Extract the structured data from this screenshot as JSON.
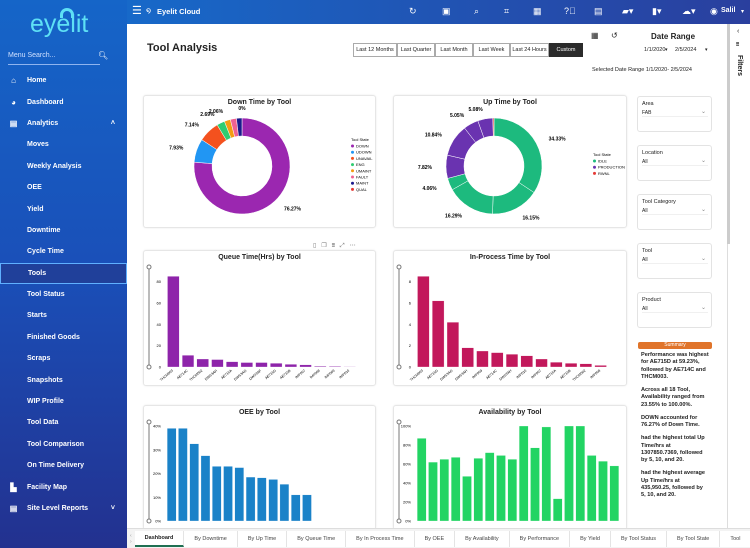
{
  "app": {
    "title": "Eyelit Cloud",
    "logo_text": "eyelit",
    "user": "Salil"
  },
  "sidebar": {
    "search_placeholder": "Menu Search...",
    "items": [
      {
        "label": "Home",
        "icon": "home-icon",
        "glyph": "⌂",
        "level": 0
      },
      {
        "label": "Dashboard",
        "icon": "dashboard-icon",
        "glyph": "◕",
        "level": 0
      },
      {
        "label": "Analytics",
        "icon": "analytics-icon",
        "glyph": "▤",
        "level": 0,
        "chevron": "˄"
      },
      {
        "label": "Moves",
        "level": 1
      },
      {
        "label": "Weekly Analysis",
        "level": 1
      },
      {
        "label": "OEE",
        "level": 1
      },
      {
        "label": "Yield",
        "level": 1
      },
      {
        "label": "Downtime",
        "level": 1
      },
      {
        "label": "Cycle Time",
        "level": 1
      },
      {
        "label": "Tools",
        "level": 1,
        "active": true
      },
      {
        "label": "Tool Status",
        "level": 1
      },
      {
        "label": "Starts",
        "level": 1
      },
      {
        "label": "Finished Goods",
        "level": 1
      },
      {
        "label": "Scraps",
        "level": 1
      },
      {
        "label": "Snapshots",
        "level": 1
      },
      {
        "label": "WIP Profile",
        "level": 1
      },
      {
        "label": "Tool Data",
        "level": 1
      },
      {
        "label": "Tool Comparison",
        "level": 1
      },
      {
        "label": "On Time Delivery",
        "level": 1
      },
      {
        "label": "Facility Map",
        "icon": "factory-icon",
        "glyph": "▙",
        "level": 0
      },
      {
        "label": "Site Level Reports",
        "icon": "reports-icon",
        "glyph": "▤",
        "level": 0,
        "chevron": "˅"
      }
    ]
  },
  "header": {
    "page_title": "Tool Analysis",
    "range_buttons": [
      "Last 12 Months",
      "Last Quarter",
      "Last Month",
      "Last Week",
      "Last 24 Hours",
      "Custom"
    ],
    "selected_range": "Custom",
    "date_range_title": "Date Range",
    "date_from": "1/1/2020",
    "date_to": "2/5/2024",
    "selected_date_text": "Selected Date Range 1/1/2020- 2/5/2024"
  },
  "filters": {
    "title": "Filters",
    "items": [
      {
        "label": "Area",
        "value": "FAB"
      },
      {
        "label": "Location",
        "value": "All"
      },
      {
        "label": "Tool Category",
        "value": "All"
      },
      {
        "label": "Tool",
        "value": "All"
      },
      {
        "label": "Product",
        "value": "All"
      }
    ]
  },
  "summary": {
    "title": "Summary",
    "paragraphs": [
      "Performance was highest for AE715D at 59.23%, followed by AE714C and THCM003.",
      "Across all 18 Tool, Availability ranged from 23.55% to 100.00%.",
      "DOWN accounted for 76.27% of  Down Time.",
      " had the highest total Up Time/hrs at 1307850.7369, followed by 5, 10, and 20.",
      " had the highest average Up Time/hrs at 435,950.25, followed by 5, 10, and 20."
    ]
  },
  "tabs": [
    "Dashboard",
    "By Downtime",
    "By Up Time",
    "By Queue Time",
    "By In Process Time",
    "By OEE",
    "By Availability",
    "By Performance",
    "By Yield",
    "By Tool Status",
    "By Tool State",
    "Tool"
  ],
  "chart_data": [
    {
      "id": "down",
      "type": "pie",
      "title": "Down Time by Tool",
      "legend_title": "Tool State",
      "legend_placement": "right",
      "slices": [
        {
          "name": "DOWN",
          "value": 76.27,
          "color": "#9b27b0",
          "label": "76.27%"
        },
        {
          "name": "UDOWN",
          "value": 7.93,
          "color": "#2196f3",
          "label": "7.93%"
        },
        {
          "name": "UNAVAIL",
          "value": 7.14,
          "color": "#f4511e",
          "label": "7.14%"
        },
        {
          "name": "ENG",
          "value": 2.69,
          "color": "#2ecc71",
          "label": "2.69%"
        },
        {
          "name": "UMAINT",
          "value": 2.06,
          "color": "#f39c12",
          "label": "2.06%"
        },
        {
          "name": "FAULT",
          "value": 2.06,
          "color": "#f06292",
          "label": ""
        },
        {
          "name": "MAINT",
          "value": 1.85,
          "color": "#1a1a8c",
          "label": ""
        },
        {
          "name": "QUAL",
          "value": 0,
          "color": "#e53935",
          "label": "0%"
        }
      ]
    },
    {
      "id": "up",
      "type": "pie",
      "title": "Up Time by Tool",
      "legend_title": "Tool State",
      "legend_placement": "right",
      "legend": [
        {
          "name": "IDLE",
          "color": "#1dba7e"
        },
        {
          "name": "PRODUCTION",
          "color": "#6a33b0"
        },
        {
          "name": "RWNL",
          "color": "#e53935"
        }
      ],
      "slices": [
        {
          "name": "IDLE",
          "value": 34.33,
          "color": "#1dba7e",
          "label": "34.33%"
        },
        {
          "name": "IDLE",
          "value": 16.15,
          "color": "#1dba7e",
          "label": "16.15%"
        },
        {
          "name": "IDLE",
          "value": 16.29,
          "color": "#1dba7e",
          "label": "16.29%"
        },
        {
          "name": "IDLE",
          "value": 4.06,
          "color": "#1dba7e",
          "label": "4.06%"
        },
        {
          "name": "PRODUCTION",
          "value": 7.82,
          "color": "#6a33b0",
          "label": "7.82%"
        },
        {
          "name": "PRODUCTION",
          "value": 10.84,
          "color": "#6a33b0",
          "label": "10.84%"
        },
        {
          "name": "PRODUCTION",
          "value": 5.05,
          "color": "#6a33b0",
          "label": "5.05%"
        },
        {
          "name": "PRODUCTION",
          "value": 5.08,
          "color": "#6a33b0",
          "label": "5.08%"
        },
        {
          "name": "RWNL",
          "value": 0.38,
          "color": "#e53935",
          "label": ""
        }
      ]
    },
    {
      "id": "queue",
      "type": "bar",
      "title": "Queue Time(Hrs) by Tool",
      "color": "#8e24aa",
      "ylim": [
        0,
        90
      ],
      "yticks": [
        0,
        20,
        40,
        60,
        80
      ],
      "tick_suffix": "",
      "categories": [
        "THCM003",
        "AE714C",
        "THCM002",
        "DWS3AH",
        "AE715A",
        "DWS3AG",
        "DWS3AF",
        "AE715D",
        "AE715B",
        "IMP007",
        "IMP008",
        "IMP009",
        "IMP010"
      ],
      "values": [
        85,
        11,
        7.5,
        7,
        5,
        4.2,
        4.2,
        3.5,
        2.5,
        2,
        0.8,
        0.6,
        0.4
      ]
    },
    {
      "id": "inproc",
      "type": "bar",
      "title": "In-Process Time by Tool",
      "color": "#c2185b",
      "ylim": [
        0,
        9
      ],
      "yticks": [
        0,
        2,
        4,
        6,
        8
      ],
      "tick_suffix": "",
      "categories": [
        "THCM003",
        "AE715D",
        "DWS3AG",
        "DWS3AH",
        "IMP009",
        "AE714C",
        "DWS3AH",
        "IMP010",
        "IMP007",
        "AE715A",
        "AE715B",
        "THCM002",
        "IMP008"
      ],
      "values": [
        8.5,
        6.2,
        4.2,
        1.8,
        1.5,
        1.35,
        1.2,
        1.05,
        0.75,
        0.45,
        0.35,
        0.3,
        0.15
      ]
    },
    {
      "id": "oee",
      "type": "bar",
      "title": "OEE by Tool",
      "color": "#1a82c8",
      "ylim": [
        0,
        40
      ],
      "yticks": [
        0,
        10,
        20,
        30,
        40
      ],
      "tick_suffix": "%",
      "categories": [
        "",
        "",
        "",
        "",
        "",
        "",
        "",
        "",
        "",
        "",
        "",
        "",
        "",
        "",
        "",
        "",
        "",
        ""
      ],
      "values": [
        39,
        39,
        32.5,
        27.5,
        23,
        23,
        22.5,
        18.5,
        18.2,
        17.5,
        15.5,
        11,
        11,
        0,
        0,
        0,
        0,
        0
      ]
    },
    {
      "id": "avail",
      "type": "bar",
      "title": "Availability by Tool",
      "color": "#22d463",
      "ylim": [
        0,
        100
      ],
      "yticks": [
        0,
        20,
        40,
        60,
        80,
        100
      ],
      "tick_suffix": "%",
      "categories": [
        "",
        "",
        "",
        "",
        "",
        "",
        "",
        "",
        "",
        "",
        "",
        "",
        "",
        "",
        "",
        "",
        "",
        ""
      ],
      "values": [
        87,
        62,
        65,
        67,
        47,
        66,
        72,
        69,
        65,
        100,
        77,
        99,
        23.5,
        100,
        100,
        69,
        63,
        58
      ]
    }
  ]
}
